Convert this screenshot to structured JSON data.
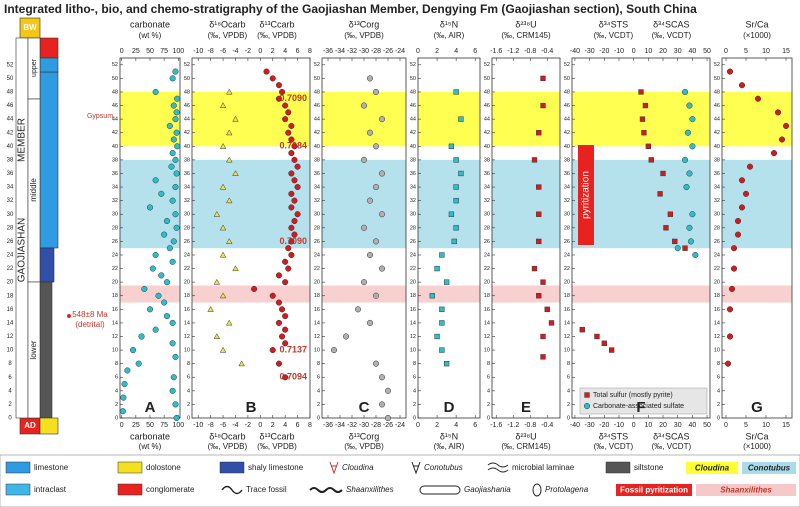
{
  "figure_title": "Integrated litho-, bio, and chemo-stratigraphy of the Gaojiashan Member, Dengying Fm (Gaojiashan section), South China",
  "column": {
    "top_unit": "BW",
    "bottom_unit": "AD",
    "upper": "upper",
    "middle": "middle",
    "lower": "lower",
    "member": [
      "GAOJIASHAN",
      "MEMBER"
    ],
    "age": "548±8 Ma",
    "age_note": "(detrital)",
    "gypsum": "Gypsum"
  },
  "height_axis": {
    "ylim": [
      0,
      53
    ],
    "yticks": [
      0,
      2,
      4,
      6,
      8,
      10,
      12,
      14,
      16,
      18,
      20,
      22,
      24,
      26,
      28,
      30,
      32,
      34,
      36,
      38,
      40,
      42,
      44,
      46,
      48,
      50,
      52
    ]
  },
  "bands": [
    {
      "from": 40,
      "to": 48,
      "color": "#ffff33"
    },
    {
      "from": 25,
      "to": 38,
      "color": "#a8dcea"
    },
    {
      "from": 17,
      "to": 19.5,
      "color": "#f7c8c8"
    }
  ],
  "chart_data": [
    {
      "type": "scatter",
      "panel": "A",
      "xlabels": [
        "carbonate"
      ],
      "units": "(wt %)",
      "xlim": [
        -3,
        103
      ],
      "xticks": [
        0,
        25,
        50,
        75,
        100
      ],
      "series": [
        {
          "color": "#2bbfc9",
          "marker": "circle",
          "x": [
            95,
            90,
            60,
            98,
            92,
            97,
            95,
            85,
            97,
            92,
            98,
            90,
            95,
            88,
            97,
            60,
            95,
            70,
            90,
            50,
            95,
            80,
            97,
            75,
            92,
            85,
            60,
            90,
            55,
            70,
            80,
            40,
            65,
            75,
            50,
            80,
            90,
            60,
            35,
            90,
            20,
            95,
            30,
            10,
            92,
            5,
            90,
            3,
            95,
            2,
            97
          ],
          "y": [
            51,
            50,
            48,
            47,
            46,
            45,
            44,
            43,
            42,
            41,
            40,
            39,
            38,
            37,
            36,
            35,
            34,
            33,
            32,
            31,
            30,
            29,
            28,
            27,
            26,
            25,
            24,
            23,
            22,
            21,
            20,
            19,
            18,
            17,
            16,
            15,
            14,
            13,
            12,
            11,
            10,
            9,
            8,
            7,
            6,
            5,
            4,
            3,
            2,
            1,
            0
          ]
        }
      ]
    },
    {
      "type": "scatter",
      "panel": "B",
      "xlabels": [
        "δ¹⁸Ocarb",
        "δ¹³Ccarb"
      ],
      "units": "(‰, VPDB)",
      "xlim": [
        -11,
        8
      ],
      "xticks": [
        -10,
        -8,
        -6,
        -4,
        -2,
        0,
        2,
        4,
        6,
        8
      ],
      "series": [
        {
          "color": "#f0e442",
          "marker": "triangle",
          "x": [
            -5,
            -6,
            -4,
            -5,
            -6,
            -5,
            -4,
            -6,
            -5,
            -7,
            -6,
            -5,
            -6,
            -4,
            -7,
            -6,
            -8,
            -5,
            -7,
            -6,
            -3
          ],
          "y": [
            48,
            46,
            44,
            42,
            40,
            38,
            36,
            34,
            32,
            30,
            28,
            26,
            24,
            22,
            20,
            18,
            16,
            14,
            12,
            10,
            8
          ]
        },
        {
          "color": "#d7191c",
          "marker": "circle",
          "x": [
            1,
            2,
            3,
            3.5,
            3,
            4,
            4.5,
            4,
            5,
            4.5,
            5,
            5.5,
            5,
            5.5,
            6,
            5,
            5.5,
            6,
            5,
            5.5,
            5,
            6,
            5.5,
            5,
            5.5,
            5,
            4.5,
            5,
            4,
            4.5,
            3,
            4,
            -1,
            2,
            3,
            3.5,
            4,
            3,
            4,
            3.5,
            4,
            2,
            3,
            4
          ],
          "y": [
            51,
            50,
            49,
            48,
            47,
            46,
            45,
            44,
            43,
            42,
            41,
            40,
            39,
            38,
            37,
            36,
            35,
            34,
            33,
            32,
            31,
            30,
            29,
            28,
            27,
            26,
            25,
            24,
            23,
            22,
            21,
            20,
            19,
            18,
            17,
            16,
            15,
            14,
            13,
            12,
            11,
            10,
            8,
            6
          ]
        }
      ],
      "annotations": [
        {
          "text": "0.7090",
          "y": 47
        },
        {
          "text": "0.7084",
          "y": 40
        },
        {
          "text": "0.7090",
          "y": 26
        },
        {
          "text": "0.7137",
          "y": 10
        },
        {
          "text": "0.7094",
          "y": 6
        }
      ]
    },
    {
      "type": "scatter",
      "panel": "C",
      "xlabels": [
        "δ¹³Corg"
      ],
      "units": "(‰, VPDB)",
      "xlim": [
        -37,
        -23
      ],
      "xticks": [
        -36,
        -34,
        -32,
        -30,
        -28,
        -26,
        -24
      ],
      "series": [
        {
          "color": "#b0b0b0",
          "marker": "circle",
          "x": [
            -29,
            -28,
            -30,
            -27,
            -29,
            -28,
            -30,
            -27,
            -28,
            -29,
            -27,
            -30,
            -28,
            -29,
            -27,
            -30,
            -28,
            -31,
            -29,
            -33,
            -35,
            -28,
            -27,
            -26,
            -27,
            -26
          ],
          "y": [
            50,
            48,
            46,
            44,
            42,
            40,
            38,
            36,
            34,
            32,
            30,
            28,
            26,
            24,
            22,
            20,
            18,
            16,
            14,
            12,
            10,
            8,
            6,
            4,
            2,
            0
          ]
        }
      ]
    },
    {
      "type": "scatter",
      "panel": "D",
      "xlabels": [
        "δ¹⁵N"
      ],
      "units": "(‰, AIR)",
      "xlim": [
        0,
        6.5
      ],
      "xticks": [
        0,
        2,
        4,
        6
      ],
      "series": [
        {
          "color": "#2bbfc9",
          "marker": "square",
          "x": [
            4,
            4.5,
            3.5,
            4,
            4.5,
            4,
            4,
            3.5,
            4,
            3.8,
            2.5,
            2,
            3,
            1.5,
            2.5,
            2.5,
            2,
            2.5,
            3
          ],
          "y": [
            48,
            44,
            40,
            38,
            36,
            34,
            32,
            30,
            28,
            26,
            24,
            22,
            20,
            18,
            16,
            14,
            12,
            10,
            8
          ]
        }
      ]
    },
    {
      "type": "scatter",
      "panel": "E",
      "xlabels": [
        "δ²³⁸U"
      ],
      "units": "(‰, CRM145)",
      "xlim": [
        -1.7,
        -0.1
      ],
      "xticks": [
        -1.6,
        -1.2,
        -0.8,
        -0.4
      ],
      "series": [
        {
          "color": "#d7191c",
          "marker": "square",
          "x": [
            -0.5,
            -0.5,
            -0.6,
            -0.7,
            -0.6,
            -0.6,
            -0.6,
            -0.7,
            -0.5,
            -0.6,
            -0.4,
            -0.3,
            -0.5,
            -0.5
          ],
          "y": [
            50,
            46,
            42,
            38,
            34,
            30,
            26,
            22,
            20,
            18,
            16,
            14,
            12,
            9
          ]
        }
      ]
    },
    {
      "type": "scatter",
      "panel": "F",
      "xlabels": [
        "δ³⁴STS",
        "δ³⁴SCAS"
      ],
      "units": "(‰, VCDT)",
      "xlim": [
        -42,
        52
      ],
      "xticks": [
        -40,
        -30,
        -20,
        -10,
        0,
        10,
        20,
        30,
        40,
        50
      ],
      "annotation": "pyritization",
      "legend_loc": "lower right",
      "series": [
        {
          "name": "Total sulfur (mostly pyrite)",
          "color": "#d7191c",
          "marker": "square",
          "x": [
            5,
            8,
            6,
            7,
            10,
            12,
            20,
            18,
            25,
            22,
            28,
            35,
            -35,
            -25,
            -20,
            -15
          ],
          "y": [
            48,
            46,
            44,
            42,
            40,
            38,
            36,
            33,
            30,
            28,
            26,
            25,
            13,
            12,
            11,
            10
          ]
        },
        {
          "name": "Carbonate-associated sulfate",
          "color": "#2bbfc9",
          "marker": "circle",
          "x": [
            35,
            38,
            40,
            37,
            40,
            35,
            38,
            36,
            40,
            38,
            39,
            30,
            42
          ],
          "y": [
            48,
            46,
            44,
            42,
            40,
            38,
            36,
            34,
            30,
            28,
            26,
            25,
            24
          ]
        }
      ]
    },
    {
      "type": "scatter",
      "panel": "G",
      "xlabels": [
        "Sr/Ca"
      ],
      "units": "(×1000)",
      "xlim": [
        -1,
        16.5
      ],
      "xticks": [
        0,
        5,
        10,
        15
      ],
      "series": [
        {
          "color": "#d7191c",
          "marker": "circle",
          "x": [
            1,
            4,
            8,
            13,
            15,
            14,
            12,
            6,
            4,
            5,
            4,
            3,
            3,
            2,
            2,
            1.5,
            1,
            1,
            0.5
          ],
          "y": [
            51,
            49,
            47,
            45,
            43,
            41,
            39,
            37,
            35,
            33,
            31,
            29,
            27,
            25,
            22,
            19,
            16,
            12,
            8
          ]
        }
      ]
    }
  ],
  "legend": {
    "items": [
      "limestone",
      "dolostone",
      "shaly limestone",
      "Cloudina",
      "Conotubus",
      "microbial laminae",
      "siltstone",
      "intraclast",
      "conglomerate",
      "Trace fossil",
      "Shaanxilithes",
      "Gaojiashania",
      "Protolagena"
    ],
    "boxes": [
      {
        "label": "Cloudina",
        "color": "#ffff33"
      },
      {
        "label": "Conotubus",
        "color": "#a8dcea"
      },
      {
        "label": "Fossil pyritization",
        "color": "#e8231f"
      },
      {
        "label": "Shaanxilithes",
        "color": "#f7c8c8"
      }
    ]
  }
}
